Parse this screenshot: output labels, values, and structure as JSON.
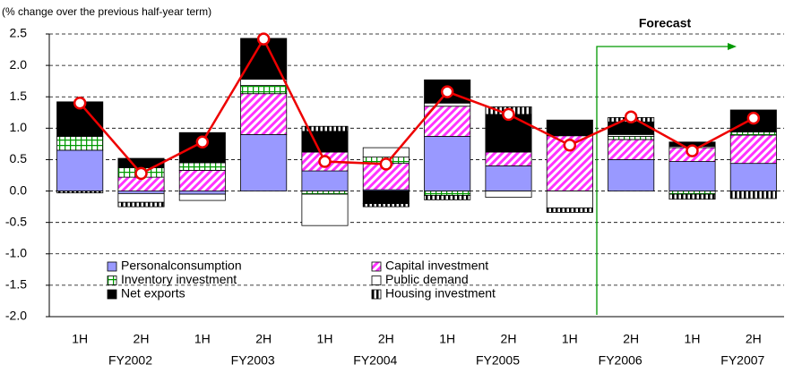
{
  "chart_data": {
    "type": "stacked_bar_line",
    "y_axis_label": "(% change over the previous half-year term)",
    "annotation": "Forecast",
    "categories": [
      "1H",
      "2H",
      "1H",
      "2H",
      "1H",
      "2H",
      "1H",
      "2H",
      "1H",
      "2H",
      "1H",
      "2H"
    ],
    "fiscal_years": [
      "FY2002",
      "FY2003",
      "FY2004",
      "FY2005",
      "FY2006",
      "FY2007"
    ],
    "series": [
      {
        "name": "Personalconsumption",
        "color": "#9999ff",
        "pattern": "solid",
        "values": [
          0.65,
          -0.04,
          -0.05,
          0.9,
          0.32,
          0.02,
          0.87,
          0.4,
          0,
          0.5,
          0.47,
          0.44
        ]
      },
      {
        "name": "Capital investment",
        "color": "#ff33ff",
        "pattern": "diagonal",
        "values": [
          0,
          0.22,
          0.33,
          0.65,
          0.3,
          0.42,
          0.48,
          0.22,
          0.88,
          0.32,
          0.22,
          0.45
        ]
      },
      {
        "name": "Inventory investment",
        "color": "#009900",
        "pattern": "grid",
        "values": [
          0.22,
          0.15,
          0.12,
          0.13,
          -0.05,
          0.1,
          -0.07,
          0,
          0,
          0.05,
          -0.05,
          0.05
        ]
      },
      {
        "name": "Public demand",
        "color": "#ffffff",
        "pattern": "solid",
        "values": [
          0,
          -0.14,
          -0.1,
          0.1,
          -0.5,
          0.15,
          0.05,
          -0.1,
          -0.27,
          0.03,
          0.02,
          0
        ]
      },
      {
        "name": "Net exports",
        "color": "#000000",
        "pattern": "solid",
        "values": [
          0.55,
          0.15,
          0.48,
          0.65,
          0.33,
          -0.2,
          0.37,
          0.6,
          0.25,
          0.2,
          0.07,
          0.35
        ]
      },
      {
        "name": "Housing investment",
        "color": "#000000",
        "pattern": "vertical",
        "values": [
          -0.03,
          -0.07,
          0,
          0,
          0.08,
          -0.05,
          -0.07,
          0.12,
          -0.07,
          0.07,
          -0.08,
          -0.12
        ]
      }
    ],
    "line": {
      "color": "#ee0000",
      "values": [
        1.4,
        0.28,
        0.78,
        2.42,
        0.47,
        0.43,
        1.58,
        1.22,
        0.73,
        1.18,
        0.64,
        1.16
      ]
    },
    "ylim": [
      -2.0,
      2.5
    ],
    "yticks": [
      {
        "value": -2,
        "label": "-2.0"
      },
      {
        "value": -1.5,
        "label": "-1.5"
      },
      {
        "value": -1,
        "label": "-1.0"
      },
      {
        "value": -0.5,
        "label": "-0.5"
      },
      {
        "value": 0,
        "label": "0.0"
      },
      {
        "value": 0.5,
        "label": "0.5"
      },
      {
        "value": 1,
        "label": "1.0"
      },
      {
        "value": 1.5,
        "label": "1.5"
      },
      {
        "value": 2,
        "label": "2.0"
      },
      {
        "value": 2.5,
        "label": "2.5"
      }
    ],
    "grid": true
  }
}
